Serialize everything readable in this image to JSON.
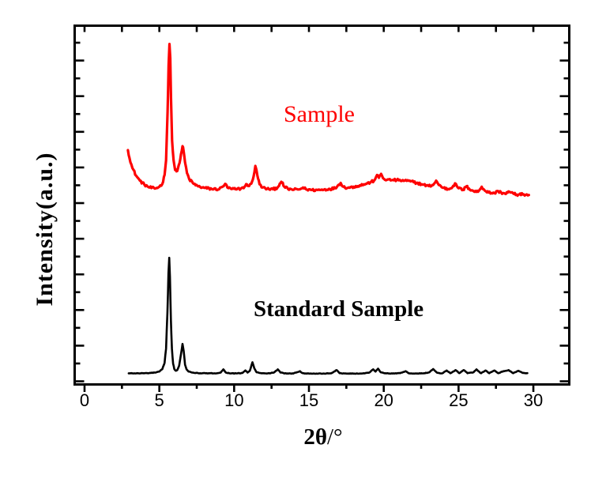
{
  "annotations": {
    "sample": {
      "text": "Sample",
      "color": "#fe0000"
    },
    "standard": {
      "text": "Standard Sample",
      "color": "#000000"
    }
  },
  "chart_data": {
    "type": "line",
    "title": "",
    "xlabel": "2θ/°",
    "xlabel_parts": [
      "2θ",
      "/°"
    ],
    "ylabel": "Intensity(a.u.)",
    "xlim": [
      -0.66,
      32.4
    ],
    "ylim": [
      0,
      1
    ],
    "grid": false,
    "legend_position": "in-plot text annotations",
    "frame_color": "#000000",
    "x_major_ticks": [
      0,
      5,
      10,
      15,
      20,
      25,
      30
    ],
    "x_tick_labels": [
      "0",
      "5",
      "10",
      "15",
      "20",
      "25",
      "30"
    ],
    "x_minor_ticks": [
      2.5,
      7.5,
      12.5,
      17.5,
      22.5,
      27.5
    ],
    "y_ticks_norm": {
      "major_start": 0.0088,
      "major_step": 0.09934,
      "count": 10,
      "minor_offset": 0.04967
    },
    "series": [
      {
        "name": "Sample",
        "color": "#fe0000",
        "line_width": 3.2,
        "noise_amp": 0.0035,
        "seed": 12345,
        "points": [
          [
            2.9,
            0.653
          ],
          [
            3.0,
            0.632
          ],
          [
            3.2,
            0.603
          ],
          [
            3.45,
            0.582
          ],
          [
            3.7,
            0.568
          ],
          [
            4.0,
            0.557
          ],
          [
            4.35,
            0.549
          ],
          [
            4.7,
            0.546
          ],
          [
            5.0,
            0.551
          ],
          [
            5.2,
            0.559
          ],
          [
            5.35,
            0.584
          ],
          [
            5.45,
            0.625
          ],
          [
            5.55,
            0.76
          ],
          [
            5.62,
            0.89
          ],
          [
            5.68,
            0.949
          ],
          [
            5.73,
            0.91
          ],
          [
            5.78,
            0.8
          ],
          [
            5.85,
            0.68
          ],
          [
            5.95,
            0.625
          ],
          [
            6.05,
            0.598
          ],
          [
            6.15,
            0.594
          ],
          [
            6.25,
            0.603
          ],
          [
            6.35,
            0.617
          ],
          [
            6.45,
            0.642
          ],
          [
            6.55,
            0.664
          ],
          [
            6.62,
            0.652
          ],
          [
            6.72,
            0.619
          ],
          [
            6.85,
            0.589
          ],
          [
            7.0,
            0.572
          ],
          [
            7.3,
            0.559
          ],
          [
            7.6,
            0.552
          ],
          [
            8.0,
            0.548
          ],
          [
            8.5,
            0.545
          ],
          [
            9.0,
            0.544
          ],
          [
            9.25,
            0.552
          ],
          [
            9.4,
            0.559
          ],
          [
            9.55,
            0.549
          ],
          [
            9.8,
            0.545
          ],
          [
            10.1,
            0.544
          ],
          [
            10.45,
            0.546
          ],
          [
            10.7,
            0.551
          ],
          [
            10.85,
            0.558
          ],
          [
            11.0,
            0.553
          ],
          [
            11.15,
            0.56
          ],
          [
            11.3,
            0.58
          ],
          [
            11.42,
            0.609
          ],
          [
            11.55,
            0.583
          ],
          [
            11.7,
            0.558
          ],
          [
            11.9,
            0.549
          ],
          [
            12.2,
            0.545
          ],
          [
            12.6,
            0.544
          ],
          [
            12.9,
            0.549
          ],
          [
            13.05,
            0.56
          ],
          [
            13.2,
            0.563
          ],
          [
            13.35,
            0.551
          ],
          [
            13.6,
            0.545
          ],
          [
            14.0,
            0.543
          ],
          [
            14.4,
            0.544
          ],
          [
            14.6,
            0.549
          ],
          [
            14.8,
            0.544
          ],
          [
            15.2,
            0.542
          ],
          [
            15.6,
            0.542
          ],
          [
            16.0,
            0.543
          ],
          [
            16.4,
            0.545
          ],
          [
            16.75,
            0.547
          ],
          [
            17.0,
            0.557
          ],
          [
            17.12,
            0.562
          ],
          [
            17.3,
            0.551
          ],
          [
            17.6,
            0.548
          ],
          [
            18.0,
            0.551
          ],
          [
            18.4,
            0.555
          ],
          [
            18.8,
            0.559
          ],
          [
            19.1,
            0.563
          ],
          [
            19.35,
            0.568
          ],
          [
            19.55,
            0.584
          ],
          [
            19.68,
            0.576
          ],
          [
            19.82,
            0.587
          ],
          [
            19.95,
            0.575
          ],
          [
            20.2,
            0.57
          ],
          [
            20.6,
            0.57
          ],
          [
            21.0,
            0.569
          ],
          [
            21.4,
            0.568
          ],
          [
            21.8,
            0.566
          ],
          [
            22.2,
            0.562
          ],
          [
            22.6,
            0.557
          ],
          [
            23.0,
            0.553
          ],
          [
            23.3,
            0.556
          ],
          [
            23.5,
            0.568
          ],
          [
            23.68,
            0.556
          ],
          [
            24.0,
            0.548
          ],
          [
            24.35,
            0.544
          ],
          [
            24.65,
            0.554
          ],
          [
            24.82,
            0.559
          ],
          [
            25.0,
            0.547
          ],
          [
            25.3,
            0.542
          ],
          [
            25.52,
            0.552
          ],
          [
            25.7,
            0.546
          ],
          [
            26.0,
            0.539
          ],
          [
            26.3,
            0.537
          ],
          [
            26.55,
            0.551
          ],
          [
            26.72,
            0.542
          ],
          [
            27.0,
            0.535
          ],
          [
            27.4,
            0.533
          ],
          [
            27.65,
            0.539
          ],
          [
            27.85,
            0.535
          ],
          [
            28.1,
            0.532
          ],
          [
            28.4,
            0.537
          ],
          [
            28.7,
            0.531
          ],
          [
            29.0,
            0.529
          ],
          [
            29.35,
            0.53
          ],
          [
            29.7,
            0.528
          ]
        ]
      },
      {
        "name": "Standard Sample",
        "color": "#000000",
        "line_width": 2.6,
        "noise_amp": 0.0007,
        "seed": 777,
        "points": [
          [
            2.95,
            0.031
          ],
          [
            3.6,
            0.031
          ],
          [
            4.2,
            0.0315
          ],
          [
            4.7,
            0.033
          ],
          [
            5.0,
            0.036
          ],
          [
            5.2,
            0.043
          ],
          [
            5.35,
            0.06
          ],
          [
            5.45,
            0.1
          ],
          [
            5.54,
            0.2
          ],
          [
            5.61,
            0.31
          ],
          [
            5.66,
            0.353
          ],
          [
            5.71,
            0.3
          ],
          [
            5.77,
            0.18
          ],
          [
            5.84,
            0.1
          ],
          [
            5.92,
            0.058
          ],
          [
            6.0,
            0.043
          ],
          [
            6.1,
            0.038
          ],
          [
            6.2,
            0.04
          ],
          [
            6.32,
            0.052
          ],
          [
            6.45,
            0.085
          ],
          [
            6.55,
            0.113
          ],
          [
            6.63,
            0.093
          ],
          [
            6.72,
            0.055
          ],
          [
            6.82,
            0.042
          ],
          [
            6.95,
            0.036
          ],
          [
            7.2,
            0.033
          ],
          [
            7.6,
            0.0315
          ],
          [
            8.1,
            0.031
          ],
          [
            8.7,
            0.031
          ],
          [
            9.1,
            0.033
          ],
          [
            9.28,
            0.042
          ],
          [
            9.45,
            0.033
          ],
          [
            9.8,
            0.0308
          ],
          [
            10.2,
            0.0308
          ],
          [
            10.55,
            0.032
          ],
          [
            10.75,
            0.039
          ],
          [
            10.9,
            0.033
          ],
          [
            11.05,
            0.038
          ],
          [
            11.22,
            0.062
          ],
          [
            11.35,
            0.045
          ],
          [
            11.5,
            0.034
          ],
          [
            11.8,
            0.0312
          ],
          [
            12.2,
            0.0305
          ],
          [
            12.65,
            0.033
          ],
          [
            12.92,
            0.042
          ],
          [
            13.1,
            0.033
          ],
          [
            13.5,
            0.0305
          ],
          [
            13.95,
            0.0305
          ],
          [
            14.4,
            0.037
          ],
          [
            14.6,
            0.0312
          ],
          [
            15.0,
            0.0303
          ],
          [
            15.5,
            0.0303
          ],
          [
            16.0,
            0.0305
          ],
          [
            16.5,
            0.0312
          ],
          [
            16.85,
            0.04
          ],
          [
            17.05,
            0.0315
          ],
          [
            17.5,
            0.0303
          ],
          [
            18.0,
            0.0303
          ],
          [
            18.6,
            0.0308
          ],
          [
            19.0,
            0.0325
          ],
          [
            19.3,
            0.042
          ],
          [
            19.45,
            0.036
          ],
          [
            19.62,
            0.044
          ],
          [
            19.8,
            0.034
          ],
          [
            20.1,
            0.0312
          ],
          [
            20.6,
            0.0305
          ],
          [
            21.1,
            0.0315
          ],
          [
            21.45,
            0.037
          ],
          [
            21.7,
            0.0308
          ],
          [
            22.2,
            0.0303
          ],
          [
            22.7,
            0.0312
          ],
          [
            23.05,
            0.034
          ],
          [
            23.3,
            0.043
          ],
          [
            23.55,
            0.033
          ],
          [
            23.9,
            0.0308
          ],
          [
            24.2,
            0.039
          ],
          [
            24.45,
            0.0312
          ],
          [
            24.8,
            0.04
          ],
          [
            25.05,
            0.0315
          ],
          [
            25.35,
            0.04
          ],
          [
            25.6,
            0.0312
          ],
          [
            26.0,
            0.034
          ],
          [
            26.2,
            0.042
          ],
          [
            26.5,
            0.0312
          ],
          [
            26.8,
            0.039
          ],
          [
            27.05,
            0.0312
          ],
          [
            27.4,
            0.039
          ],
          [
            27.65,
            0.0312
          ],
          [
            28.0,
            0.037
          ],
          [
            28.35,
            0.04
          ],
          [
            28.65,
            0.0312
          ],
          [
            29.0,
            0.038
          ],
          [
            29.3,
            0.032
          ],
          [
            29.6,
            0.0315
          ]
        ]
      }
    ]
  }
}
